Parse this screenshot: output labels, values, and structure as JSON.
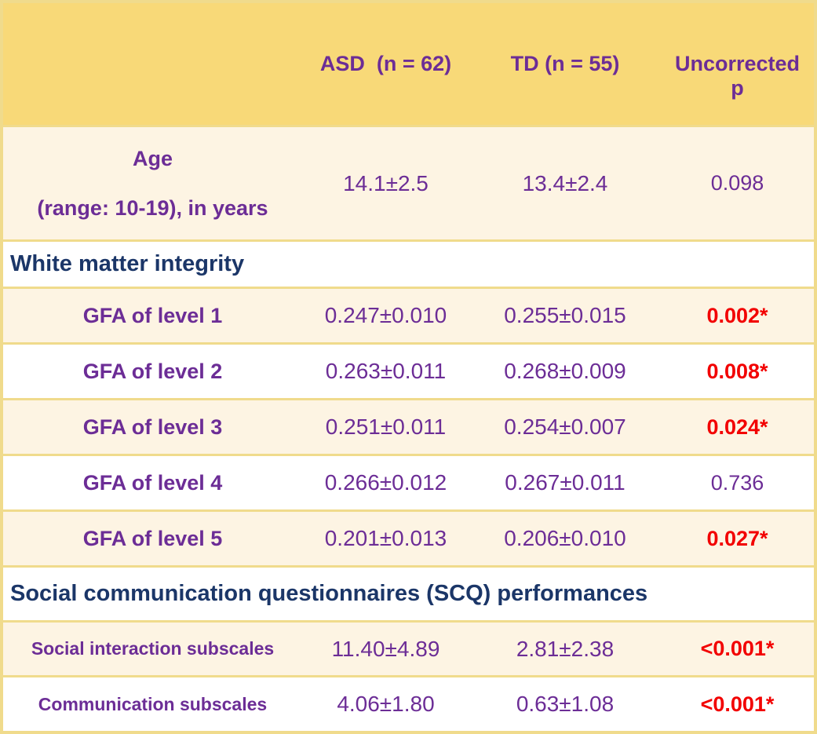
{
  "colors": {
    "header_bg": "#F8D978",
    "row_cream_bg": "#FDF4E3",
    "row_white_bg": "#FFFFFF",
    "border_yellow": "#F0DB8C",
    "text_purple": "#6C2D96",
    "text_navy": "#1B3668",
    "text_red_significant": "#F20000"
  },
  "header": {
    "col1": "",
    "col2": "ASD  (n = 62)",
    "col3": "TD (n = 55)",
    "col4": "Uncorrected p"
  },
  "rows": [
    {
      "type": "data",
      "label_line1": "Age",
      "label_line2": "(range: 10-19), in years",
      "asd": "14.1±2.5",
      "td": "13.4±2.4",
      "p": "0.098",
      "significant": false
    },
    {
      "type": "section",
      "label": "White matter integrity"
    },
    {
      "type": "data",
      "label": "GFA of level 1",
      "asd": "0.247±0.010",
      "td": "0.255±0.015",
      "p": "0.002*",
      "significant": true
    },
    {
      "type": "data",
      "label": "GFA of level 2",
      "asd": "0.263±0.011",
      "td": "0.268±0.009",
      "p": "0.008*",
      "significant": true
    },
    {
      "type": "data",
      "label": "GFA of level 3",
      "asd": "0.251±0.011",
      "td": "0.254±0.007",
      "p": "0.024*",
      "significant": true
    },
    {
      "type": "data",
      "label": "GFA of level 4",
      "asd": "0.266±0.012",
      "td": "0.267±0.011",
      "p": "0.736",
      "significant": false
    },
    {
      "type": "data",
      "label": "GFA of level 5",
      "asd": "0.201±0.013",
      "td": "0.206±0.010",
      "p": "0.027*",
      "significant": true
    },
    {
      "type": "section",
      "label": "Social communication questionnaires (SCQ) performances"
    },
    {
      "type": "data",
      "label": "Social interaction subscales",
      "asd": "11.40±4.89",
      "td": "2.81±2.38",
      "p": "<0.001*",
      "significant": true
    },
    {
      "type": "data",
      "label": "Communication subscales",
      "asd": "4.06±1.80",
      "td": "0.63±1.08",
      "p": "<0.001*",
      "significant": true
    }
  ]
}
